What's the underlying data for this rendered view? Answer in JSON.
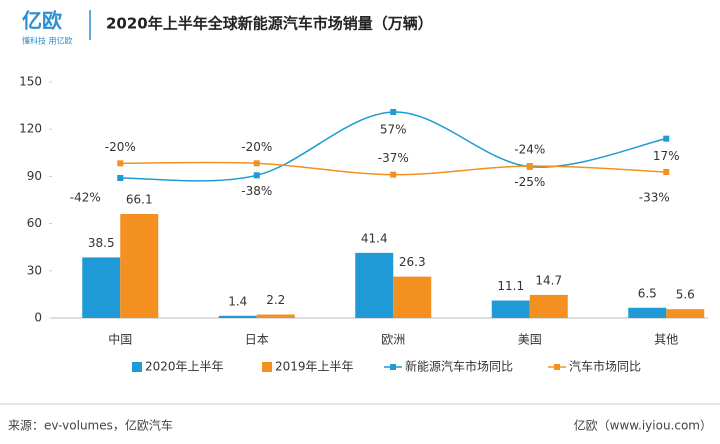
{
  "logo": {
    "name": "亿欧",
    "slogan": "懂科技 用亿欧"
  },
  "footer": {
    "source": "来源：ev-volumes，亿欧汽车",
    "site": "亿欧（www.iyiou.com）"
  },
  "chart_data": {
    "type": "bar",
    "title": "2020年上半年全球新能源汽车市场销量（万辆）",
    "categories": [
      "中国",
      "日本",
      "欧洲",
      "美国",
      "其他"
    ],
    "ylim": [
      0,
      150
    ],
    "yticks": [
      0,
      30,
      60,
      90,
      120,
      150
    ],
    "y2lim": [
      -252,
      102
    ],
    "series": [
      {
        "name": "2020年上半年",
        "type": "bar",
        "color": "#1f9ad6",
        "values": [
          38.5,
          1.4,
          41.4,
          11.1,
          6.5
        ]
      },
      {
        "name": "2019年上半年",
        "type": "bar",
        "color": "#f39020",
        "values": [
          66.1,
          2.2,
          26.3,
          14.7,
          5.6
        ]
      },
      {
        "name": "新能源汽车市场同比",
        "type": "line",
        "axis": "y2",
        "color": "#1f9ad6",
        "values": [
          -42,
          -38,
          57,
          -25,
          17
        ],
        "value_labels": [
          "-42%",
          "-38%",
          "57%",
          "-25%",
          "17%"
        ]
      },
      {
        "name": "汽车市场同比",
        "type": "line",
        "axis": "y2",
        "color": "#f39020",
        "values": [
          -20,
          -20,
          -37,
          -24,
          -33
        ],
        "value_labels": [
          "-20%",
          "-20%",
          "-37%",
          "-24%",
          "-33%"
        ]
      }
    ],
    "legend": "bottom"
  }
}
